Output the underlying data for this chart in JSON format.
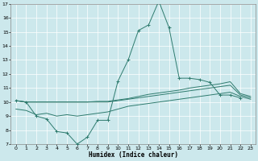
{
  "xlabel": "Humidex (Indice chaleur)",
  "xlim": [
    -0.5,
    23.5
  ],
  "ylim": [
    7,
    17
  ],
  "yticks": [
    7,
    8,
    9,
    10,
    11,
    12,
    13,
    14,
    15,
    16,
    17
  ],
  "xticks": [
    0,
    1,
    2,
    3,
    4,
    5,
    6,
    7,
    8,
    9,
    10,
    11,
    12,
    13,
    14,
    15,
    16,
    17,
    18,
    19,
    20,
    21,
    22,
    23
  ],
  "bg_color": "#cce8ec",
  "line_color": "#2e7b6e",
  "line1_x": [
    0,
    1,
    2,
    3,
    4,
    5,
    6,
    7,
    8,
    9,
    10,
    11,
    12,
    13,
    14,
    15,
    16,
    17,
    18,
    19,
    20,
    21,
    22,
    23
  ],
  "line1_y": [
    10.1,
    10.0,
    9.0,
    8.8,
    7.9,
    7.8,
    7.0,
    7.5,
    8.7,
    8.7,
    11.5,
    13.0,
    15.1,
    15.5,
    17.2,
    15.3,
    11.7,
    11.7,
    11.6,
    11.4,
    10.5,
    10.5,
    10.3,
    null
  ],
  "line2_x": [
    0,
    1,
    2,
    3,
    4,
    5,
    6,
    7,
    8,
    9,
    10,
    11,
    12,
    13,
    14,
    15,
    16,
    17,
    18,
    19,
    20,
    21,
    22,
    23
  ],
  "line2_y": [
    10.1,
    10.0,
    10.0,
    10.0,
    10.0,
    10.0,
    10.0,
    10.0,
    10.0,
    10.0,
    10.1,
    10.2,
    10.3,
    10.4,
    10.5,
    10.6,
    10.7,
    10.8,
    10.9,
    11.0,
    11.1,
    11.2,
    10.5,
    10.3
  ],
  "line3_x": [
    0,
    1,
    2,
    3,
    4,
    5,
    6,
    7,
    8,
    9,
    10,
    11,
    12,
    13,
    14,
    15,
    16,
    17,
    18,
    19,
    20,
    21,
    22,
    23
  ],
  "line3_y": [
    10.1,
    10.0,
    10.0,
    10.0,
    10.0,
    10.0,
    10.0,
    10.0,
    10.05,
    10.05,
    10.15,
    10.25,
    10.4,
    10.55,
    10.65,
    10.75,
    10.85,
    11.0,
    11.1,
    11.2,
    11.3,
    11.45,
    10.6,
    10.4
  ],
  "line4_x": [
    0,
    1,
    2,
    3,
    4,
    5,
    6,
    7,
    8,
    9,
    10,
    11,
    12,
    13,
    14,
    15,
    16,
    17,
    18,
    19,
    20,
    21,
    22,
    23
  ],
  "line4_y": [
    9.5,
    9.4,
    9.1,
    9.2,
    9.0,
    9.1,
    9.0,
    9.1,
    9.2,
    9.3,
    9.5,
    9.7,
    9.8,
    9.9,
    10.0,
    10.1,
    10.2,
    10.3,
    10.4,
    10.5,
    10.6,
    10.7,
    10.4,
    10.2
  ]
}
